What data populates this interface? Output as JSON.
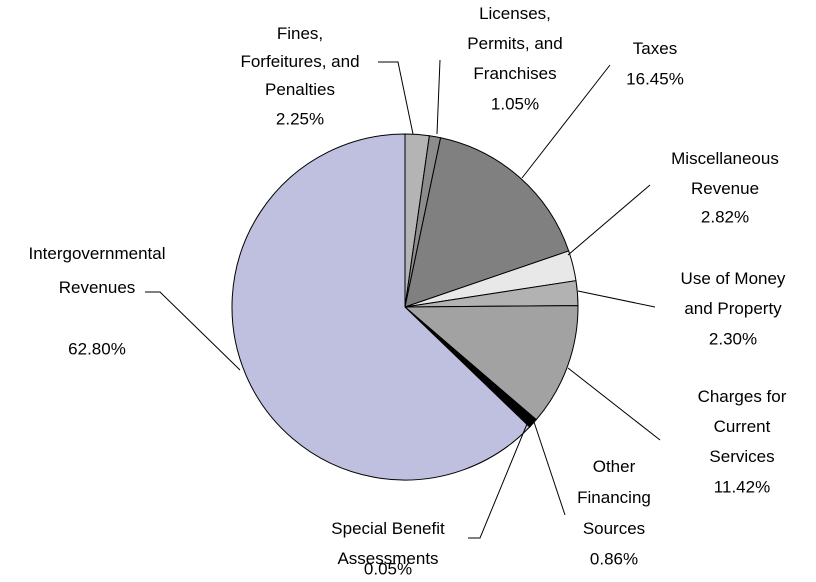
{
  "chart_data": {
    "type": "pie",
    "categories": [
      "Fines,\nForfeitures, and\nPenalties",
      "Licenses,\nPermits, and\nFranchises",
      "Taxes",
      "Miscellaneous\nRevenue",
      "Use of Money\nand Property",
      "Charges for\nCurrent\nServices",
      "Other\nFinancing\nSources",
      "Special Benefit\nAssessments",
      "Intergovernmental\nRevenues"
    ],
    "values": [
      2.25,
      1.05,
      16.45,
      2.82,
      2.3,
      11.42,
      0.86,
      0.05,
      62.8
    ],
    "value_labels": [
      "2.25%",
      "1.05%",
      "16.45%",
      "2.82%",
      "2.30%",
      "11.42%",
      "0.86%",
      "0.05%",
      "62.80%"
    ],
    "colors": [
      "#b4b4b4",
      "#8c8c8c",
      "#808080",
      "#e8e8e8",
      "#b2b2b2",
      "#a2a2a2",
      "#000000",
      "#ffffff",
      "#bfbfdf"
    ]
  }
}
